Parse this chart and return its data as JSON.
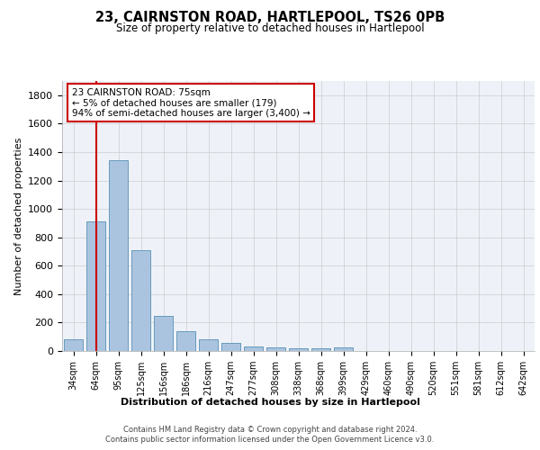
{
  "title": "23, CAIRNSTON ROAD, HARTLEPOOL, TS26 0PB",
  "subtitle": "Size of property relative to detached houses in Hartlepool",
  "xlabel": "Distribution of detached houses by size in Hartlepool",
  "ylabel": "Number of detached properties",
  "categories": [
    "34sqm",
    "64sqm",
    "95sqm",
    "125sqm",
    "156sqm",
    "186sqm",
    "216sqm",
    "247sqm",
    "277sqm",
    "308sqm",
    "338sqm",
    "368sqm",
    "399sqm",
    "429sqm",
    "460sqm",
    "490sqm",
    "520sqm",
    "551sqm",
    "581sqm",
    "612sqm",
    "642sqm"
  ],
  "values": [
    85,
    910,
    1340,
    710,
    250,
    140,
    80,
    55,
    30,
    25,
    20,
    18,
    25,
    0,
    0,
    0,
    0,
    0,
    0,
    0,
    0
  ],
  "bar_color": "#aac4e0",
  "bar_edge_color": "#6699bb",
  "vline_x": 1.0,
  "vline_color": "#cc0000",
  "annotation_text": "23 CAIRNSTON ROAD: 75sqm\n← 5% of detached houses are smaller (179)\n94% of semi-detached houses are larger (3,400) →",
  "annotation_box_color": "#ffffff",
  "annotation_box_edge": "#cc0000",
  "ylim": [
    0,
    1900
  ],
  "yticks": [
    0,
    200,
    400,
    600,
    800,
    1000,
    1200,
    1400,
    1600,
    1800
  ],
  "footer_line1": "Contains HM Land Registry data © Crown copyright and database right 2024.",
  "footer_line2": "Contains public sector information licensed under the Open Government Licence v3.0.",
  "background_color": "#ffffff",
  "grid_color": "#cccccc",
  "ax_bg_color": "#eef2f8"
}
